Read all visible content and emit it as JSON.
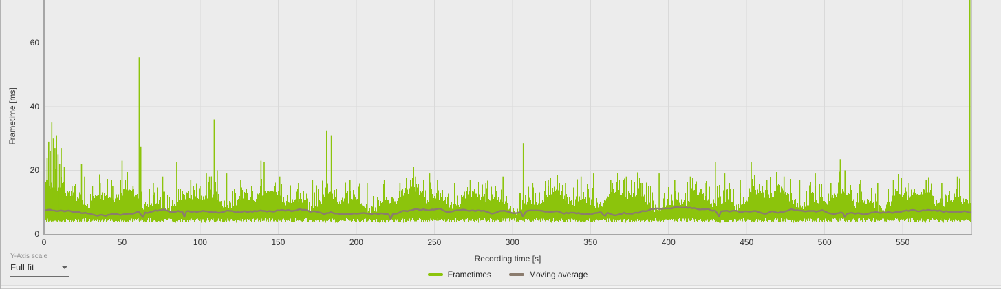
{
  "colors": {
    "background": "#ececec",
    "grid": "#d9d9d9",
    "axis": "#a6a6a6",
    "frametimes": "#8cc40c",
    "moving_average": "#8b7c6e",
    "tick_text": "#333333"
  },
  "legend": {
    "frametimes_label": "Frametimes",
    "moving_average_label": "Moving average"
  },
  "controls": {
    "y_axis_scale_label": "Y-Axis scale",
    "y_axis_scale_value": "Full fit"
  },
  "chart_data": {
    "type": "line",
    "title": "",
    "xlabel": "Recording time [s]",
    "ylabel": "Frametime [ms]",
    "xlim": [
      0,
      594
    ],
    "ylim": [
      0,
      73.5
    ],
    "x_ticks": [
      0,
      50,
      100,
      150,
      200,
      250,
      300,
      350,
      400,
      450,
      500,
      550
    ],
    "y_ticks": [
      0,
      20,
      40,
      60
    ],
    "grid": true,
    "legend_position": "bottom",
    "series": [
      {
        "name": "Frametimes",
        "color": "#8cc40c",
        "style": "dense-noise-band",
        "baseline_ms": {
          "min": 3.6,
          "typical_max": 12,
          "mean": 7
        },
        "noise_seed": 1337,
        "spikes": [
          [
            2,
            24
          ],
          [
            3,
            29
          ],
          [
            4,
            26
          ],
          [
            5,
            35
          ],
          [
            6,
            30
          ],
          [
            7,
            27
          ],
          [
            8,
            31
          ],
          [
            9,
            25
          ],
          [
            10,
            22
          ],
          [
            11,
            27
          ],
          [
            13,
            21
          ],
          [
            18,
            15
          ],
          [
            24,
            22
          ],
          [
            26,
            18
          ],
          [
            31,
            15
          ],
          [
            36,
            16
          ],
          [
            44,
            15
          ],
          [
            50,
            23
          ],
          [
            52,
            17
          ],
          [
            57,
            15
          ],
          [
            61,
            55.5
          ],
          [
            62,
            27.5
          ],
          [
            70,
            16
          ],
          [
            76,
            18
          ],
          [
            85,
            22.5
          ],
          [
            94,
            17
          ],
          [
            100,
            15
          ],
          [
            104,
            19
          ],
          [
            106,
            18
          ],
          [
            109,
            36
          ],
          [
            111,
            20
          ],
          [
            117,
            19
          ],
          [
            126,
            17
          ],
          [
            133,
            15
          ],
          [
            139,
            23
          ],
          [
            141,
            22.5
          ],
          [
            151,
            18
          ],
          [
            163,
            16
          ],
          [
            172,
            17
          ],
          [
            181,
            32.5
          ],
          [
            184,
            31
          ],
          [
            196,
            17
          ],
          [
            207,
            16
          ],
          [
            218,
            17
          ],
          [
            228,
            16
          ],
          [
            238,
            18
          ],
          [
            247,
            19
          ],
          [
            252,
            17
          ],
          [
            263,
            16
          ],
          [
            273,
            17
          ],
          [
            283,
            16
          ],
          [
            294,
            18
          ],
          [
            307,
            28.5
          ],
          [
            313,
            16
          ],
          [
            323,
            17
          ],
          [
            334,
            16
          ],
          [
            344,
            18
          ],
          [
            352,
            19
          ],
          [
            363,
            17
          ],
          [
            373,
            18
          ],
          [
            383,
            16
          ],
          [
            394,
            19
          ],
          [
            404,
            17
          ],
          [
            414,
            18
          ],
          [
            424,
            16
          ],
          [
            430,
            22.5
          ],
          [
            436,
            19
          ],
          [
            446,
            17
          ],
          [
            453,
            22.5
          ],
          [
            463,
            17
          ],
          [
            474,
            18
          ],
          [
            484,
            17
          ],
          [
            494,
            19
          ],
          [
            504,
            16
          ],
          [
            510,
            23.5
          ],
          [
            513,
            20
          ],
          [
            523,
            17
          ],
          [
            534,
            16
          ],
          [
            544,
            17
          ],
          [
            554,
            16
          ],
          [
            565,
            17
          ],
          [
            575,
            16
          ],
          [
            585,
            18
          ],
          [
            593,
            73.5
          ]
        ]
      },
      {
        "name": "Moving average",
        "color": "#8b7c6e",
        "style": "line",
        "mean_ms": 7,
        "range_ms": [
          5.4,
          8.7
        ],
        "noise_seed": 42,
        "dips": [
          [
            63,
            4.6
          ],
          [
            90,
            5.2
          ],
          [
            222,
            4.6
          ],
          [
            307,
            5.0
          ],
          [
            359,
            4.8
          ],
          [
            432,
            5.0
          ],
          [
            513,
            5.2
          ]
        ]
      }
    ]
  }
}
